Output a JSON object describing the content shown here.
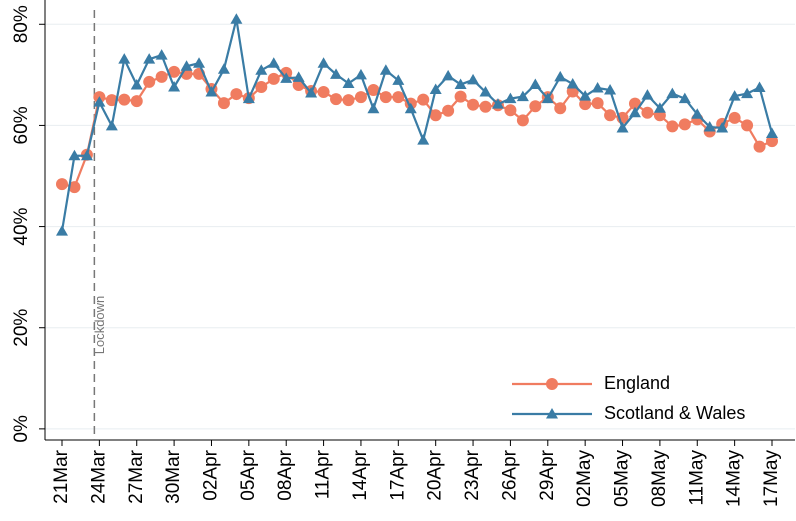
{
  "chart_data": {
    "type": "line",
    "categories": [
      "21Mar",
      null,
      null,
      "24Mar",
      null,
      null,
      "27Mar",
      null,
      null,
      "30Mar",
      null,
      null,
      "02Apr",
      null,
      null,
      "05Apr",
      null,
      null,
      "08Apr",
      null,
      null,
      "11Apr",
      null,
      null,
      "14Apr",
      null,
      null,
      "17Apr",
      null,
      null,
      "20Apr",
      null,
      null,
      "23Apr",
      null,
      null,
      "26Apr",
      null,
      null,
      "29Apr",
      null,
      null,
      "02May",
      null,
      null,
      "05May",
      null,
      null,
      "08May",
      null,
      null,
      "11May",
      null,
      null,
      "14May",
      null,
      null,
      "17May"
    ],
    "series": [
      {
        "name": "England",
        "color": "#f07c60",
        "marker": "circle",
        "values": [
          48.4,
          47.8,
          54.2,
          65.6,
          65.0,
          65.1,
          64.8,
          68.6,
          69.6,
          70.6,
          70.2,
          70.2,
          67.2,
          64.4,
          66.2,
          65.4,
          67.6,
          69.2,
          70.4,
          68.0,
          66.8,
          66.6,
          65.2,
          65.0,
          65.6,
          67.0,
          65.6,
          65.6,
          64.3,
          65.1,
          62.0,
          62.9,
          65.7,
          64.1,
          63.7,
          64.0,
          63.0,
          61.0,
          63.8,
          65.6,
          63.4,
          66.7,
          64.2,
          64.4,
          62.0,
          61.5,
          64.3,
          62.5,
          62.0,
          59.8,
          60.2,
          61.2,
          58.8,
          60.3,
          61.5,
          60.0,
          55.8,
          56.9
        ]
      },
      {
        "name": "Scotland & Wales",
        "color": "#3a7ca5",
        "marker": "triangle",
        "values": [
          39.1,
          54.0,
          54.0,
          64.6,
          59.9,
          73.1,
          68.0,
          73.1,
          73.9,
          67.6,
          71.7,
          72.3,
          66.6,
          71.1,
          81.0,
          65.3,
          70.9,
          72.3,
          69.3,
          69.5,
          66.4,
          72.3,
          70.1,
          68.3,
          70.0,
          63.3,
          70.9,
          68.9,
          63.3,
          57.1,
          67.1,
          69.8,
          68.1,
          69.0,
          66.6,
          64.2,
          65.3,
          65.7,
          68.1,
          65.3,
          69.6,
          68.2,
          65.8,
          67.4,
          67.0,
          59.5,
          62.5,
          66.0,
          63.4,
          66.3,
          65.3,
          62.2,
          59.7,
          59.5,
          65.8,
          66.3,
          67.5,
          58.4
        ]
      }
    ],
    "ylim": [
      -2.2,
      84.8
    ],
    "yticks": [
      {
        "value": 0,
        "label": "0%"
      },
      {
        "value": 20,
        "label": "20%"
      },
      {
        "value": 40,
        "label": "40%"
      },
      {
        "value": 60,
        "label": "60%"
      },
      {
        "value": 80,
        "label": "80%"
      }
    ],
    "grid": true,
    "legend": "bottom-right",
    "annotation": {
      "text": "Lockdown",
      "category_index": 3
    }
  }
}
